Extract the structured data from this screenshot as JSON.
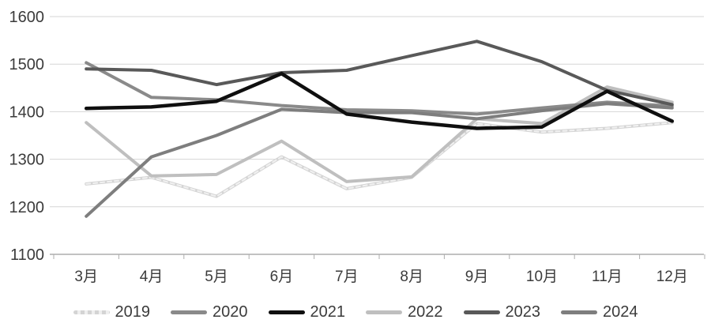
{
  "chart_data": {
    "type": "line",
    "title": "",
    "xlabel": "",
    "ylabel": "",
    "categories": [
      "3月",
      "4月",
      "5月",
      "6月",
      "7月",
      "8月",
      "9月",
      "10月",
      "11月",
      "12月"
    ],
    "yticks": [
      1100,
      1200,
      1300,
      1400,
      1500,
      1600
    ],
    "ylim": [
      1100,
      1600
    ],
    "grid": true,
    "legend_position": "bottom",
    "series": [
      {
        "name": "2019",
        "color": "#d4d4d4",
        "style": "patterned",
        "values": [
          1248,
          1262,
          1222,
          1305,
          1238,
          1262,
          1375,
          1357,
          1365,
          1377
        ]
      },
      {
        "name": "2020",
        "color": "#8a8a8a",
        "style": "solid",
        "values": [
          1503,
          1430,
          1425,
          1413,
          1404,
          1402,
          1395,
          1408,
          1420,
          1412
        ]
      },
      {
        "name": "2021",
        "color": "#0f0f0f",
        "style": "solid",
        "values": [
          1407,
          1410,
          1422,
          1480,
          1395,
          1378,
          1365,
          1368,
          1443,
          1380
        ]
      },
      {
        "name": "2022",
        "color": "#bfbfbf",
        "style": "solid",
        "values": [
          1377,
          1265,
          1268,
          1338,
          1253,
          1263,
          1385,
          1375,
          1452,
          1420
        ]
      },
      {
        "name": "2023",
        "color": "#595959",
        "style": "solid",
        "values": [
          1490,
          1487,
          1457,
          1482,
          1487,
          1518,
          1548,
          1505,
          1445,
          1415
        ]
      },
      {
        "name": "2024",
        "color": "#7e7e7e",
        "style": "solid",
        "values": [
          1180,
          1305,
          1350,
          1405,
          1398,
          1398,
          1385,
          1402,
          1417,
          1408
        ]
      }
    ],
    "colors": {
      "gridline": "#d6d6d6",
      "axis_line": "#adadad",
      "tick": "#adadad",
      "label": "#3b3b3b",
      "background": "#ffffff"
    }
  }
}
